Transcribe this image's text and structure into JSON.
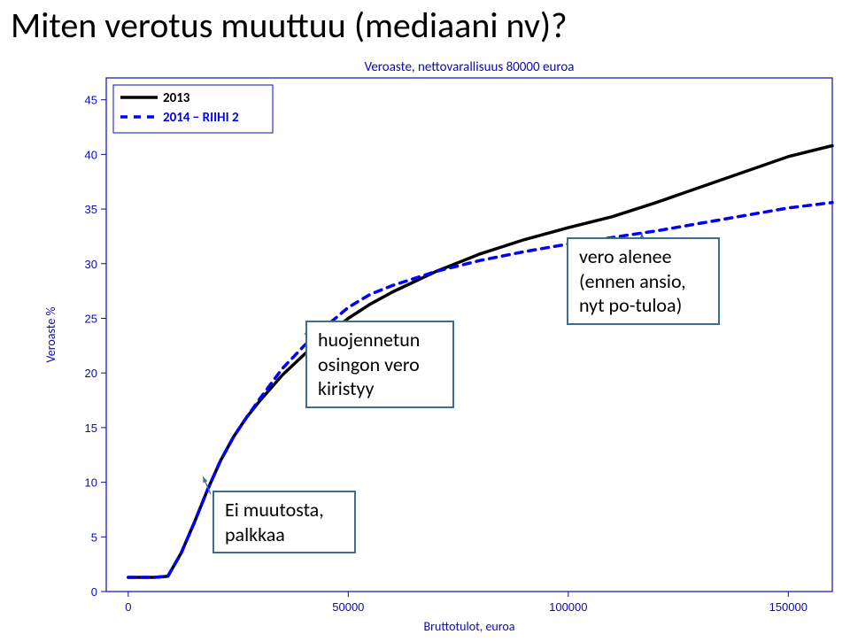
{
  "page_title": "Miten verotus muuttuu (mediaani nv)?",
  "chart": {
    "type": "line",
    "title": "Veroaste, nettovarallisuus 80000 euroa",
    "title_color": "#0b0bb5",
    "title_fontsize": 15,
    "xlabel": "Bruttotulot, euroa",
    "ylabel": "Veroaste %",
    "label_fontsize": 14,
    "label_color": "#0b0bb5",
    "xlim": [
      -5000,
      160000
    ],
    "ylim": [
      0,
      47
    ],
    "xticks": [
      0,
      50000,
      100000,
      150000
    ],
    "yticks": [
      0,
      5,
      10,
      15,
      20,
      25,
      30,
      35,
      40,
      45
    ],
    "tick_fontsize": 13,
    "tick_color": "#0b0bb5",
    "background_color": "#ffffff",
    "axis_color": "#0b0bb5",
    "grid": false,
    "box": true,
    "legend": {
      "position": "top-left",
      "border_color": "#0b0bb5",
      "fontsize": 15,
      "items": [
        {
          "label": "2013",
          "color": "#000000",
          "dash": "solid",
          "width": 3.5
        },
        {
          "label": "2014 − RIIHI 2",
          "color": "#0000ff",
          "dash": "8,7",
          "width": 3.5
        }
      ]
    },
    "series": [
      {
        "name": "2013",
        "color": "#000000",
        "dash": "solid",
        "width": 3.5,
        "x": [
          0,
          3000,
          6000,
          9000,
          12000,
          15000,
          18000,
          21000,
          24000,
          27000,
          30000,
          35000,
          40000,
          45000,
          50000,
          55000,
          60000,
          70000,
          80000,
          90000,
          100000,
          110000,
          120000,
          130000,
          140000,
          150000,
          160000
        ],
        "y": [
          1.3,
          1.3,
          1.3,
          1.4,
          3.5,
          6.3,
          9.3,
          12.0,
          14.2,
          16.0,
          17.5,
          19.8,
          21.7,
          23.4,
          25.0,
          26.3,
          27.4,
          29.3,
          30.9,
          32.2,
          33.3,
          34.3,
          35.6,
          37.0,
          38.4,
          39.8,
          40.8
        ]
      },
      {
        "name": "2014 − RIIHI 2",
        "color": "#0000ff",
        "dash": "8,7",
        "width": 3.5,
        "x": [
          0,
          3000,
          6000,
          9000,
          12000,
          15000,
          18000,
          21000,
          24000,
          27000,
          30000,
          35000,
          40000,
          45000,
          50000,
          55000,
          60000,
          70000,
          80000,
          90000,
          100000,
          110000,
          120000,
          130000,
          140000,
          150000,
          160000
        ],
        "y": [
          1.3,
          1.3,
          1.3,
          1.4,
          3.5,
          6.3,
          9.3,
          12.0,
          14.2,
          16.0,
          17.7,
          20.4,
          22.5,
          24.3,
          26.0,
          27.2,
          28.0,
          29.3,
          30.3,
          31.1,
          31.8,
          32.4,
          33.0,
          33.7,
          34.4,
          35.1,
          35.6
        ]
      }
    ]
  },
  "callouts": {
    "c1": {
      "text1": "huojennetun",
      "text2": "osingon vero",
      "text3": "kiristyy"
    },
    "c2": {
      "text1": "vero alenee",
      "text2": "(ennen ansio,",
      "text3": "nyt po-tuloa)"
    },
    "c3": {
      "text1": "Ei muutosta,",
      "text2": "palkkaa"
    }
  },
  "callout_style": {
    "border_color": "#3b6e8f",
    "font_size": 22
  }
}
